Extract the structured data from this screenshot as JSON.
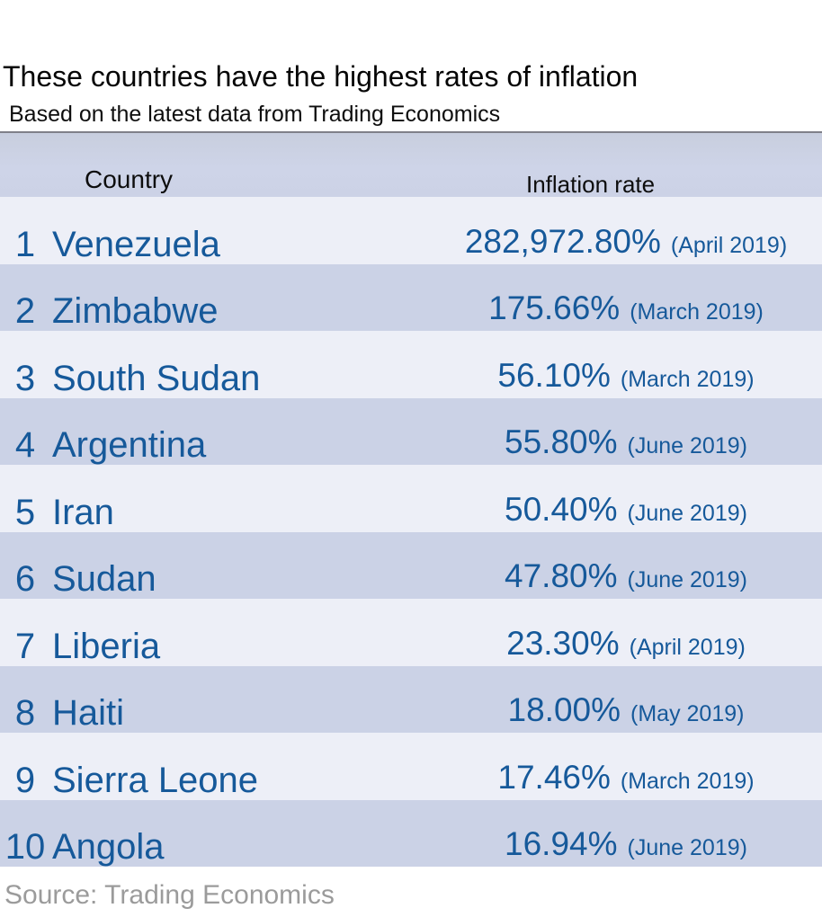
{
  "title": "These countries have the highest rates of inflation",
  "subtitle": "Based on the latest data from Trading Economics",
  "source": "Source: Trading Economics",
  "colors": {
    "accent_blue": "#16599a",
    "header_bg": "#ccd2e6",
    "row_light_bg": "#edeff7",
    "row_dark_bg": "#cbd2e6",
    "rule_gray": "#7f8089",
    "source_gray": "#9b9b9b",
    "text_black": "#060606"
  },
  "table": {
    "columns": {
      "country": "Country",
      "rate": "Inflation rate"
    },
    "rows": [
      {
        "rank": "1",
        "country": "Venezuela",
        "rate": "282,972.80%",
        "date": "(April 2019)"
      },
      {
        "rank": "2",
        "country": "Zimbabwe",
        "rate": "175.66%",
        "date": "(March 2019)"
      },
      {
        "rank": "3",
        "country": "South Sudan",
        "rate": "56.10%",
        "date": "(March 2019)"
      },
      {
        "rank": "4",
        "country": "Argentina",
        "rate": "55.80%",
        "date": "(June 2019)"
      },
      {
        "rank": "5",
        "country": "Iran",
        "rate": "50.40%",
        "date": "(June 2019)"
      },
      {
        "rank": "6",
        "country": "Sudan",
        "rate": "47.80%",
        "date": "(June 2019)"
      },
      {
        "rank": "7",
        "country": "Liberia",
        "rate": "23.30%",
        "date": "(April 2019)"
      },
      {
        "rank": "8",
        "country": "Haiti",
        "rate": "18.00%",
        "date": "(May 2019)"
      },
      {
        "rank": "9",
        "country": "Sierra Leone",
        "rate": "17.46%",
        "date": "(March 2019)"
      },
      {
        "rank": "10",
        "country": "Angola",
        "rate": "16.94%",
        "date": "(June 2019)"
      }
    ]
  },
  "chart_data": {
    "type": "table",
    "title": "These countries have the highest rates of inflation",
    "subtitle": "Based on the latest data from Trading Economics",
    "columns": [
      "Country",
      "Inflation rate"
    ],
    "categories": [
      "Venezuela",
      "Zimbabwe",
      "South Sudan",
      "Argentina",
      "Iran",
      "Sudan",
      "Liberia",
      "Haiti",
      "Sierra Leone",
      "Angola"
    ],
    "values": [
      282972.8,
      175.66,
      56.1,
      55.8,
      50.4,
      47.8,
      23.3,
      18.0,
      17.46,
      16.94
    ],
    "value_labels": [
      "282,972.80%",
      "175.66%",
      "56.10%",
      "55.80%",
      "50.40%",
      "47.80%",
      "23.30%",
      "18.00%",
      "17.46%",
      "16.94%"
    ],
    "dates": [
      "April 2019",
      "March 2019",
      "March 2019",
      "June 2019",
      "June 2019",
      "June 2019",
      "April 2019",
      "May 2019",
      "March 2019",
      "June 2019"
    ],
    "source": "Source: Trading Economics"
  }
}
